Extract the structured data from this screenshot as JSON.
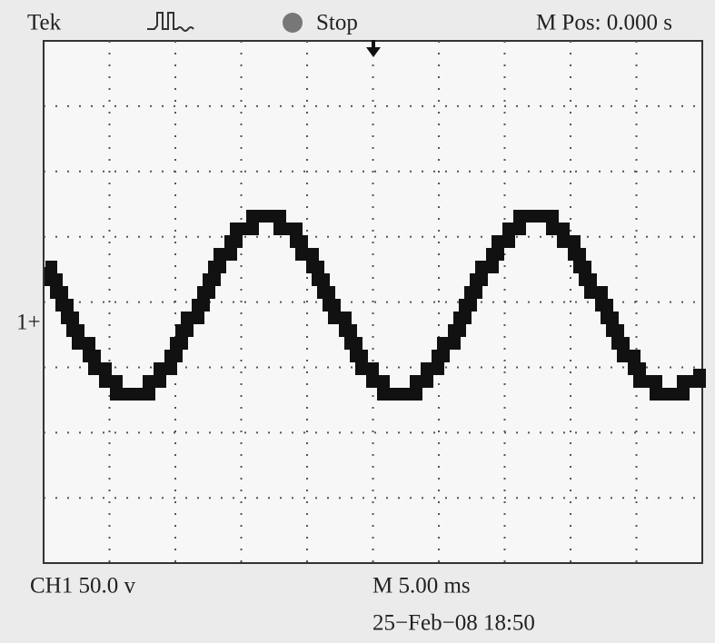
{
  "header": {
    "brand": "Tek",
    "state": "Stop",
    "position": "M Pos: 0.000 s"
  },
  "channel_marker": "1+",
  "footer": {
    "channel": "CH1 50.0 v",
    "timebase": "M 5.00 ms",
    "timestamp": "25−Feb−08 18:50"
  }
}
